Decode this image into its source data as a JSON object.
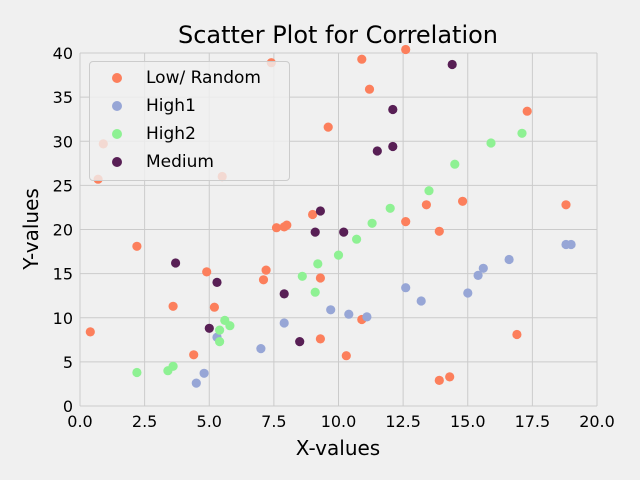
{
  "chart_data": {
    "type": "scatter",
    "title": "Scatter Plot for Correlation",
    "xlabel": "X-values",
    "ylabel": "Y-values",
    "xlim": [
      0,
      20
    ],
    "ylim": [
      0,
      40
    ],
    "xticks": [
      "0.0",
      "2.5",
      "5.0",
      "7.5",
      "10.0",
      "12.5",
      "15.0",
      "17.5",
      "20.0"
    ],
    "yticks": [
      "0",
      "5",
      "10",
      "15",
      "20",
      "25",
      "30",
      "35",
      "40"
    ],
    "grid": true,
    "legend_position": "top-left",
    "series": [
      {
        "name": "Low/ Random",
        "color": "#fc7f5c",
        "points": [
          [
            0.4,
            8.4
          ],
          [
            0.9,
            29.7
          ],
          [
            0.7,
            25.7
          ],
          [
            2.2,
            18.1
          ],
          [
            3.6,
            11.3
          ],
          [
            4.4,
            5.8
          ],
          [
            4.9,
            15.2
          ],
          [
            5.2,
            11.2
          ],
          [
            5.5,
            26.0
          ],
          [
            7.1,
            14.3
          ],
          [
            7.2,
            15.4
          ],
          [
            7.4,
            38.9
          ],
          [
            7.6,
            20.2
          ],
          [
            7.9,
            20.3
          ],
          [
            8.0,
            20.5
          ],
          [
            9.0,
            21.7
          ],
          [
            9.3,
            14.5
          ],
          [
            9.3,
            7.6
          ],
          [
            9.6,
            31.6
          ],
          [
            10.3,
            5.7
          ],
          [
            10.9,
            9.8
          ],
          [
            10.9,
            39.3
          ],
          [
            11.2,
            35.9
          ],
          [
            12.6,
            40.4
          ],
          [
            12.6,
            20.9
          ],
          [
            13.4,
            22.8
          ],
          [
            13.9,
            19.8
          ],
          [
            13.9,
            2.9
          ],
          [
            14.3,
            3.3
          ],
          [
            14.8,
            23.2
          ],
          [
            16.9,
            8.1
          ],
          [
            17.3,
            33.4
          ],
          [
            18.8,
            22.8
          ]
        ]
      },
      {
        "name": "High1",
        "color": "#97a6d6",
        "points": [
          [
            4.5,
            2.6
          ],
          [
            4.8,
            3.7
          ],
          [
            5.3,
            7.8
          ],
          [
            7.0,
            6.5
          ],
          [
            7.9,
            9.4
          ],
          [
            9.7,
            10.9
          ],
          [
            10.4,
            10.4
          ],
          [
            11.1,
            10.1
          ],
          [
            12.6,
            13.4
          ],
          [
            13.2,
            11.9
          ],
          [
            15.0,
            12.8
          ],
          [
            15.4,
            14.8
          ],
          [
            15.6,
            15.6
          ],
          [
            16.6,
            16.6
          ],
          [
            18.8,
            18.3
          ],
          [
            19.0,
            18.3
          ]
        ]
      },
      {
        "name": "High2",
        "color": "#8ef193",
        "points": [
          [
            2.2,
            3.8
          ],
          [
            3.4,
            4.0
          ],
          [
            3.6,
            4.5
          ],
          [
            5.4,
            8.6
          ],
          [
            5.4,
            7.3
          ],
          [
            5.6,
            9.7
          ],
          [
            5.8,
            9.1
          ],
          [
            8.6,
            14.7
          ],
          [
            9.1,
            12.9
          ],
          [
            9.2,
            16.1
          ],
          [
            10.0,
            17.1
          ],
          [
            10.7,
            18.9
          ],
          [
            11.3,
            20.7
          ],
          [
            12.0,
            22.4
          ],
          [
            13.5,
            24.4
          ],
          [
            14.5,
            27.4
          ],
          [
            15.9,
            29.8
          ],
          [
            17.1,
            30.9
          ]
        ]
      },
      {
        "name": "Medium",
        "color": "#581f55",
        "points": [
          [
            3.7,
            16.2
          ],
          [
            5.0,
            8.8
          ],
          [
            5.3,
            14.0
          ],
          [
            7.9,
            12.7
          ],
          [
            8.5,
            7.3
          ],
          [
            9.1,
            19.7
          ],
          [
            9.3,
            22.1
          ],
          [
            10.2,
            19.7
          ],
          [
            11.5,
            28.9
          ],
          [
            12.1,
            29.4
          ],
          [
            12.1,
            33.6
          ],
          [
            14.4,
            38.7
          ]
        ]
      }
    ]
  }
}
